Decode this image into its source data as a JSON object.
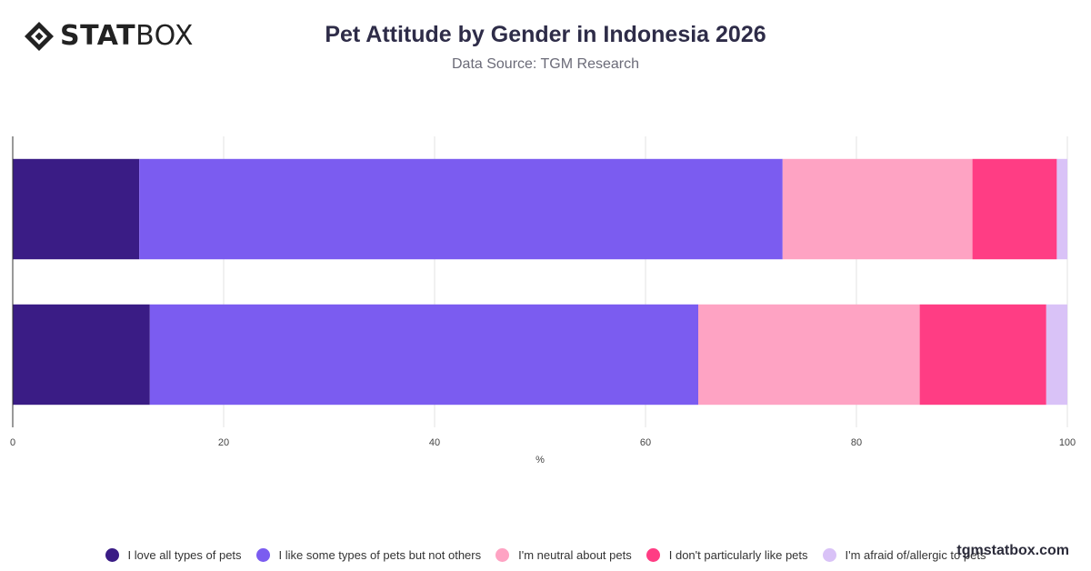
{
  "brand": {
    "logo_bold": "STAT",
    "logo_light": "BOX",
    "watermark": "tgmstatbox.com"
  },
  "colors": [
    "#3a1c85",
    "#7b5cf0",
    "#fea3c3",
    "#ff3d84",
    "#d9c2f7"
  ],
  "chart_data": {
    "type": "bar",
    "orientation": "horizontal",
    "stacked": true,
    "title": "Pet Attitude by Gender in Indonesia 2026",
    "subtitle": "Data Source: TGM Research",
    "xlabel": "%",
    "xlim": [
      0,
      100
    ],
    "xticks": [
      0,
      20,
      40,
      60,
      80,
      100
    ],
    "grid": true,
    "legend_position": "bottom",
    "categories": [
      "",
      ""
    ],
    "series": [
      {
        "name": "I love all types of pets",
        "values": [
          12,
          13
        ]
      },
      {
        "name": "I like some types of pets but not others",
        "values": [
          61,
          52
        ]
      },
      {
        "name": "I'm neutral about pets",
        "values": [
          18,
          21
        ]
      },
      {
        "name": "I don't particularly like pets",
        "values": [
          8,
          12
        ]
      },
      {
        "name": "I'm afraid of/allergic to pets",
        "values": [
          1,
          2
        ]
      }
    ]
  }
}
